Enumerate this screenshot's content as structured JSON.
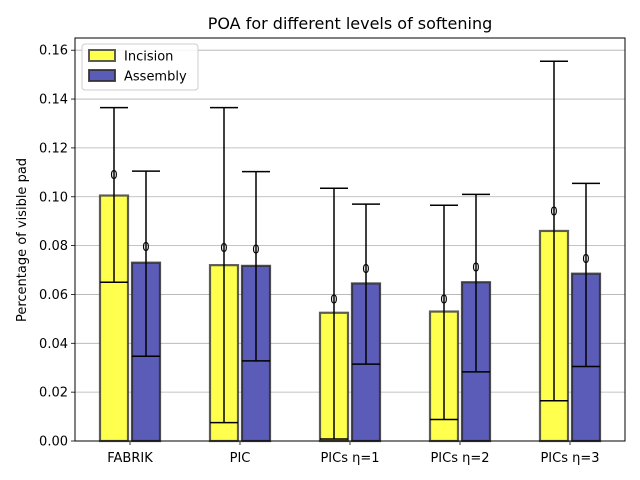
{
  "chart_data": {
    "type": "bar",
    "title": "POA for different levels of softening",
    "xlabel": "",
    "ylabel": "Percentage of visible pad",
    "categories": [
      "FABRIK",
      "PIC",
      "PICs η=1",
      "PICs η=2",
      "PICs η=3"
    ],
    "ylim": [
      0,
      0.165
    ],
    "yticks": [
      "0.00",
      "0.02",
      "0.04",
      "0.06",
      "0.08",
      "0.10",
      "0.12",
      "0.14",
      "0.16"
    ],
    "grid": "horizontal",
    "legend_position": "top-left",
    "series": [
      {
        "name": "Incision",
        "color": "#ffff4d",
        "edge_color": "#3f3f3f",
        "values": [
          0.1005,
          0.072,
          0.0525,
          0.053,
          0.086
        ],
        "error_low": [
          0.065,
          0.0075,
          0.0008,
          0.0088,
          0.0165
        ],
        "error_high": [
          0.1365,
          0.1365,
          0.1035,
          0.0965,
          0.1555
        ],
        "labels": [
          "0",
          "0",
          "0",
          "0",
          "0"
        ],
        "label_values": [
          0.109,
          0.079,
          0.058,
          0.058,
          0.094
        ]
      },
      {
        "name": "Assembly",
        "color": "#5b5bb8",
        "edge_color": "#2e2e2e",
        "values": [
          0.073,
          0.0717,
          0.0645,
          0.065,
          0.0685
        ],
        "error_low": [
          0.0347,
          0.0328,
          0.0315,
          0.0283,
          0.0305
        ],
        "error_high": [
          0.1105,
          0.1103,
          0.097,
          0.101,
          0.1055
        ],
        "labels": [
          "0",
          "0",
          "0",
          "0",
          "0"
        ],
        "label_values": [
          0.0795,
          0.0785,
          0.0705,
          0.071,
          0.0745
        ]
      }
    ]
  }
}
